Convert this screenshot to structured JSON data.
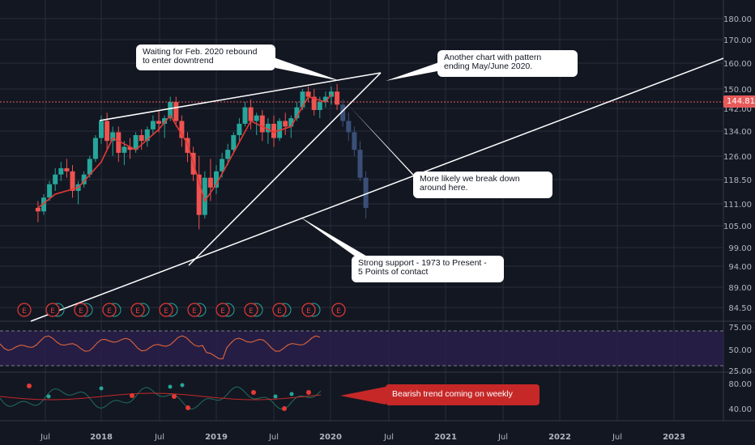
{
  "chart_data": {
    "type": "candlestick",
    "x_ticks": [
      "Jul",
      "2018",
      "Jul",
      "2019",
      "Jul",
      "2020",
      "Jul",
      "2021",
      "Jul",
      "2022",
      "Jul",
      "2023"
    ],
    "y_ticks": [
      "180.00",
      "170.00",
      "160.00",
      "150.00",
      "142.00",
      "134.00",
      "126.00",
      "118.50",
      "111.00",
      "105.00",
      "99.00",
      "94.00",
      "89.00",
      "84.50"
    ],
    "price_scale": "log",
    "last_price": "144.81",
    "candles": [
      [
        2017.45,
        110,
        112,
        106,
        109
      ],
      [
        2017.5,
        109,
        114,
        108,
        113
      ],
      [
        2017.55,
        113,
        118,
        112,
        117
      ],
      [
        2017.6,
        117,
        122,
        115,
        120
      ],
      [
        2017.65,
        120,
        124,
        118,
        122
      ],
      [
        2017.7,
        122,
        125,
        119,
        121
      ],
      [
        2017.75,
        121,
        123,
        113,
        115
      ],
      [
        2017.8,
        115,
        118,
        111,
        117
      ],
      [
        2017.85,
        117,
        121,
        116,
        120
      ],
      [
        2017.9,
        120,
        126,
        119,
        125
      ],
      [
        2017.95,
        125,
        133,
        124,
        132
      ],
      [
        2018.0,
        132,
        140,
        130,
        138
      ],
      [
        2018.05,
        138,
        141,
        128,
        131
      ],
      [
        2018.1,
        131,
        136,
        126,
        134
      ],
      [
        2018.15,
        134,
        136,
        124,
        127
      ],
      [
        2018.2,
        127,
        131,
        123,
        129
      ],
      [
        2018.25,
        129,
        132,
        125,
        128
      ],
      [
        2018.3,
        128,
        134,
        127,
        133
      ],
      [
        2018.35,
        133,
        135,
        128,
        131
      ],
      [
        2018.4,
        131,
        136,
        129,
        135
      ],
      [
        2018.45,
        135,
        140,
        133,
        138
      ],
      [
        2018.5,
        138,
        142,
        134,
        137
      ],
      [
        2018.55,
        137,
        140,
        132,
        139
      ],
      [
        2018.6,
        139,
        147,
        138,
        145
      ],
      [
        2018.65,
        145,
        147,
        136,
        138
      ],
      [
        2018.7,
        138,
        140,
        129,
        132
      ],
      [
        2018.75,
        132,
        134,
        124,
        127
      ],
      [
        2018.8,
        127,
        129,
        118,
        120
      ],
      [
        2018.85,
        120,
        126,
        104,
        108
      ],
      [
        2018.9,
        108,
        121,
        107,
        119
      ],
      [
        2018.95,
        119,
        125,
        112,
        116
      ],
      [
        2019.0,
        116,
        123,
        114,
        121
      ],
      [
        2019.05,
        121,
        127,
        119,
        125
      ],
      [
        2019.1,
        125,
        130,
        123,
        128
      ],
      [
        2019.15,
        128,
        134,
        127,
        133
      ],
      [
        2019.2,
        133,
        139,
        131,
        137
      ],
      [
        2019.25,
        137,
        145,
        136,
        143
      ],
      [
        2019.3,
        143,
        146,
        135,
        138
      ],
      [
        2019.35,
        138,
        141,
        133,
        140
      ],
      [
        2019.4,
        140,
        142,
        131,
        134
      ],
      [
        2019.45,
        134,
        139,
        130,
        137
      ],
      [
        2019.5,
        137,
        140,
        129,
        132
      ],
      [
        2019.55,
        132,
        139,
        131,
        138
      ],
      [
        2019.6,
        138,
        141,
        133,
        136
      ],
      [
        2019.65,
        136,
        140,
        132,
        139
      ],
      [
        2019.7,
        139,
        145,
        138,
        143
      ],
      [
        2019.75,
        143,
        150,
        142,
        149
      ],
      [
        2019.8,
        149,
        151,
        145,
        147
      ],
      [
        2019.85,
        147,
        150,
        140,
        142
      ],
      [
        2019.9,
        142,
        147,
        139,
        145
      ],
      [
        2019.95,
        145,
        149,
        143,
        147
      ],
      [
        2020.0,
        147,
        151,
        144,
        149
      ],
      [
        2020.05,
        149,
        152,
        142,
        144
      ],
      [
        2020.1,
        144,
        146,
        136,
        138
      ],
      [
        2020.15,
        138,
        141,
        131,
        134
      ],
      [
        2020.2,
        134,
        136,
        126,
        128
      ],
      [
        2020.25,
        128,
        131,
        118,
        119
      ],
      [
        2020.3,
        119,
        121,
        107,
        110
      ]
    ],
    "ma": [
      [
        2017.45,
        110
      ],
      [
        2017.6,
        114
      ],
      [
        2017.8,
        116
      ],
      [
        2018.0,
        124
      ],
      [
        2018.1,
        132
      ],
      [
        2018.3,
        128
      ],
      [
        2018.5,
        135
      ],
      [
        2018.6,
        140
      ],
      [
        2018.75,
        130
      ],
      [
        2018.9,
        112
      ],
      [
        2019.0,
        117
      ],
      [
        2019.15,
        127
      ],
      [
        2019.3,
        138
      ],
      [
        2019.5,
        134
      ],
      [
        2019.65,
        136
      ],
      [
        2019.8,
        147
      ],
      [
        2019.95,
        145
      ],
      [
        2020.0,
        148
      ]
    ],
    "rsi": {
      "y_ticks": [
        "75.00",
        "50.00",
        "25.00"
      ],
      "bounds": [
        30,
        70
      ]
    },
    "lower": {
      "y_ticks": [
        "80.00",
        "40.00"
      ]
    },
    "earnings_markers": [
      "E",
      "E",
      "E",
      "E",
      "E",
      "E",
      "E",
      "E",
      "E",
      "E",
      "E",
      "E"
    ]
  },
  "annotations": {
    "feb_rebound": "Waiting for Feb. 2020 rebound\nto enter downtrend",
    "pattern": "Another chart with pattern\nending May/June 2020.",
    "break_down": "More likely we break down\naround here.",
    "support": "Strong support - 1973 to Present -\n5 Points of contact",
    "bearish": "Bearish trend coming on weekly"
  },
  "colors": {
    "background": "#131722",
    "grid": "#2a2e39",
    "up": "#26a69a",
    "down": "#ef5350",
    "projection": "#3a4f78",
    "ma": "#e53935",
    "rsi_fill": "#2a1f4a",
    "price_line": "#e85a5a"
  }
}
